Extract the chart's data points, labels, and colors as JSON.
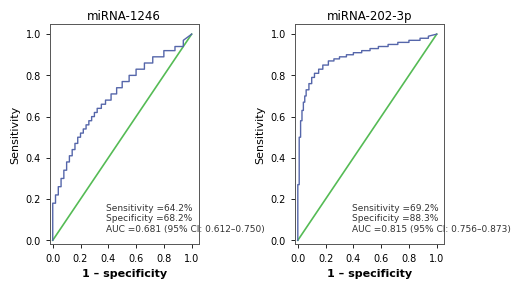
{
  "panel1_title": "miRNA-1246",
  "panel2_title": "miRNA-202-3p",
  "xlabel": "1 – specificity",
  "ylabel": "Sensitivity",
  "panel1_annotation": "Sensitivity =64.2%\nSpecificity =68.2%\nAUC =0.681 (95% CI: 0.612–0.750)",
  "panel2_annotation": "Sensitivity =69.2%\nSpecificity =88.3%\nAUC =0.815 (95% CI: 0.756–0.873)",
  "roc_color": "#5566aa",
  "diag_color": "#55bb55",
  "roc_linewidth": 1.0,
  "diag_linewidth": 1.2,
  "annotation_fontsize": 6.5,
  "title_fontsize": 8.5,
  "axis_label_fontsize": 8,
  "tick_fontsize": 7,
  "background_color": "#ffffff",
  "ylim": [
    -0.02,
    1.05
  ],
  "xlim": [
    -0.02,
    1.05
  ],
  "yticks": [
    0.0,
    0.2,
    0.4,
    0.6,
    0.8,
    1.0
  ],
  "xticks": [
    0.0,
    0.2,
    0.4,
    0.6,
    0.8,
    1.0
  ],
  "roc1_fpr": [
    0.0,
    0.0,
    0.02,
    0.02,
    0.04,
    0.04,
    0.06,
    0.06,
    0.08,
    0.08,
    0.1,
    0.1,
    0.12,
    0.12,
    0.14,
    0.14,
    0.16,
    0.16,
    0.18,
    0.18,
    0.2,
    0.2,
    0.22,
    0.22,
    0.24,
    0.24,
    0.26,
    0.26,
    0.28,
    0.28,
    0.3,
    0.3,
    0.32,
    0.32,
    0.35,
    0.35,
    0.38,
    0.38,
    0.42,
    0.42,
    0.46,
    0.46,
    0.5,
    0.5,
    0.55,
    0.55,
    0.6,
    0.6,
    0.66,
    0.66,
    0.72,
    0.72,
    0.8,
    0.8,
    0.88,
    0.88,
    0.94,
    0.94,
    1.0
  ],
  "roc1_tpr": [
    0.0,
    0.18,
    0.18,
    0.22,
    0.22,
    0.26,
    0.26,
    0.3,
    0.3,
    0.34,
    0.34,
    0.38,
    0.38,
    0.41,
    0.41,
    0.44,
    0.44,
    0.47,
    0.47,
    0.5,
    0.5,
    0.52,
    0.52,
    0.54,
    0.54,
    0.56,
    0.56,
    0.58,
    0.58,
    0.6,
    0.6,
    0.62,
    0.62,
    0.64,
    0.64,
    0.66,
    0.66,
    0.68,
    0.68,
    0.71,
    0.71,
    0.74,
    0.74,
    0.77,
    0.77,
    0.8,
    0.8,
    0.83,
    0.83,
    0.86,
    0.86,
    0.89,
    0.89,
    0.92,
    0.92,
    0.94,
    0.94,
    0.97,
    1.0
  ],
  "roc2_fpr": [
    0.0,
    0.0,
    0.01,
    0.01,
    0.02,
    0.02,
    0.03,
    0.03,
    0.04,
    0.04,
    0.05,
    0.05,
    0.06,
    0.06,
    0.08,
    0.08,
    0.1,
    0.1,
    0.12,
    0.12,
    0.15,
    0.15,
    0.18,
    0.18,
    0.22,
    0.22,
    0.26,
    0.26,
    0.3,
    0.3,
    0.35,
    0.35,
    0.4,
    0.4,
    0.46,
    0.46,
    0.52,
    0.52,
    0.58,
    0.58,
    0.65,
    0.65,
    0.72,
    0.72,
    0.8,
    0.8,
    0.88,
    0.88,
    0.94,
    0.94,
    1.0
  ],
  "roc2_tpr": [
    0.0,
    0.27,
    0.27,
    0.5,
    0.5,
    0.58,
    0.58,
    0.63,
    0.63,
    0.67,
    0.67,
    0.7,
    0.7,
    0.73,
    0.73,
    0.76,
    0.76,
    0.79,
    0.79,
    0.81,
    0.81,
    0.83,
    0.83,
    0.85,
    0.85,
    0.87,
    0.87,
    0.88,
    0.88,
    0.89,
    0.89,
    0.9,
    0.9,
    0.91,
    0.91,
    0.92,
    0.92,
    0.93,
    0.93,
    0.94,
    0.94,
    0.95,
    0.95,
    0.96,
    0.96,
    0.97,
    0.97,
    0.98,
    0.98,
    0.99,
    1.0
  ]
}
